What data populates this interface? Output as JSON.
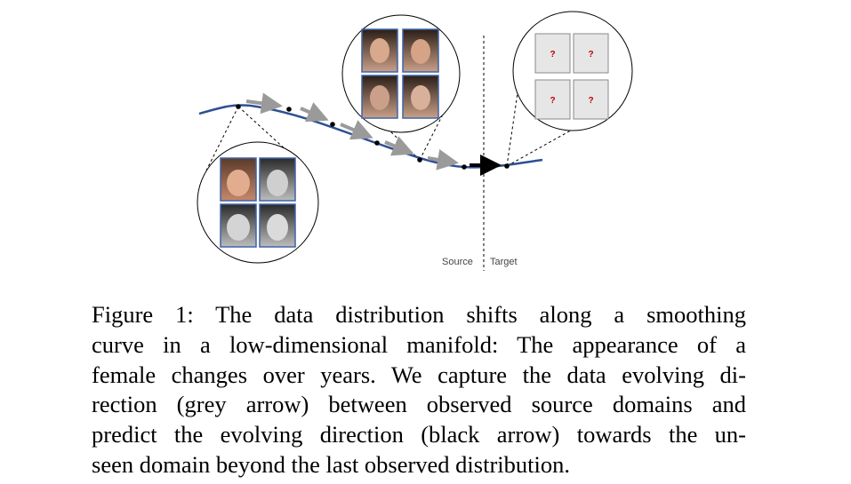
{
  "figure": {
    "source_label": "Source",
    "target_label": "Target",
    "unknown_marks": [
      "?",
      "?",
      "?",
      "?"
    ]
  },
  "caption": {
    "lines": [
      "Figure 1: The data distribution shifts along a smoothing",
      "curve in a low-dimensional manifold: The appearance of a",
      "female changes over years. We capture the data evolving di-",
      "rection (grey arrow) between observed source domains and",
      "predict the evolving direction (black arrow) towards the un-",
      "seen domain beyond the last observed distribution."
    ]
  }
}
